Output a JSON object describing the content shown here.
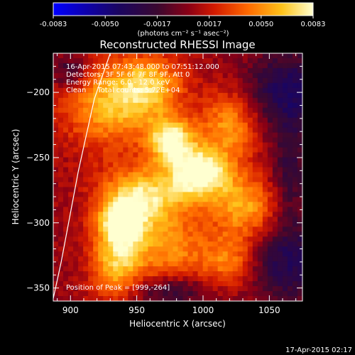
{
  "colorbar": {
    "ticks": [
      "-0.0083",
      "-0.0050",
      "-0.0017",
      "0.0017",
      "0.0050",
      "0.0083"
    ],
    "units": "(photons cm⁻² s⁻¹ asec⁻²)",
    "min": -0.0083,
    "max": 0.0083
  },
  "chart_data": {
    "type": "heatmap",
    "title": "Reconstructed RHESSI Image",
    "xlabel": "Heliocentric X (arcsec)",
    "ylabel": "Heliocentric Y (arcsec)",
    "xlim": [
      887,
      1075
    ],
    "ylim": [
      -360,
      -170
    ],
    "xticks": [
      900,
      950,
      1000,
      1050
    ],
    "yticks": [
      -200,
      -250,
      -300,
      -350
    ],
    "peak": {
      "x": 999,
      "y": -264
    },
    "annotations": [
      "16-Apr-2015 07:43:48.000 to 07:51:12.000",
      "Detectors: 3F 5F 6F 7F 8F 9F, Att 0",
      "Energy Range: 6.0 - 12.0 keV",
      "Clean     Total counts: 5.72E+04",
      "Position of Peak = [999,-264]"
    ],
    "limb_curve": [
      {
        "x": 930,
        "y": -170
      },
      {
        "x": 918,
        "y": -205
      },
      {
        "x": 906,
        "y": -260
      },
      {
        "x": 893,
        "y": -330
      },
      {
        "x": 887,
        "y": -358
      }
    ],
    "sources": [
      {
        "x": 998,
        "y": -262,
        "amp": 0.0083,
        "sx": 16,
        "sy": 14
      },
      {
        "x": 976,
        "y": -237,
        "amp": 0.0075,
        "sx": 12,
        "sy": 12
      },
      {
        "x": 955,
        "y": -280,
        "amp": 0.0068,
        "sx": 22,
        "sy": 16
      },
      {
        "x": 938,
        "y": -300,
        "amp": 0.0062,
        "sx": 12,
        "sy": 12
      },
      {
        "x": 935,
        "y": -330,
        "amp": 0.0056,
        "sx": 14,
        "sy": 20
      },
      {
        "x": 930,
        "y": -210,
        "amp": 0.0052,
        "sx": 26,
        "sy": 24
      },
      {
        "x": 960,
        "y": -195,
        "amp": 0.0046,
        "sx": 18,
        "sy": 16
      },
      {
        "x": 1020,
        "y": -225,
        "amp": 0.0046,
        "sx": 16,
        "sy": 18
      },
      {
        "x": 1032,
        "y": -288,
        "amp": 0.005,
        "sx": 18,
        "sy": 18
      },
      {
        "x": 1020,
        "y": -330,
        "amp": 0.0038,
        "sx": 14,
        "sy": 14
      },
      {
        "x": 975,
        "y": -320,
        "amp": 0.0042,
        "sx": 22,
        "sy": 18
      }
    ],
    "negative_regions": [
      {
        "x": 1065,
        "y": -200,
        "amp": -0.0045,
        "sx": 22,
        "sy": 22
      },
      {
        "x": 1065,
        "y": -330,
        "amp": -0.004,
        "sx": 22,
        "sy": 22
      },
      {
        "x": 1065,
        "y": -265,
        "amp": -0.0028,
        "sx": 10,
        "sy": 25
      },
      {
        "x": 900,
        "y": -185,
        "amp": -0.0032,
        "sx": 10,
        "sy": 10
      },
      {
        "x": 975,
        "y": -352,
        "amp": -0.003,
        "sx": 22,
        "sy": 8
      }
    ]
  },
  "footer": {
    "timestamp": "17-Apr-2015 02:17"
  }
}
